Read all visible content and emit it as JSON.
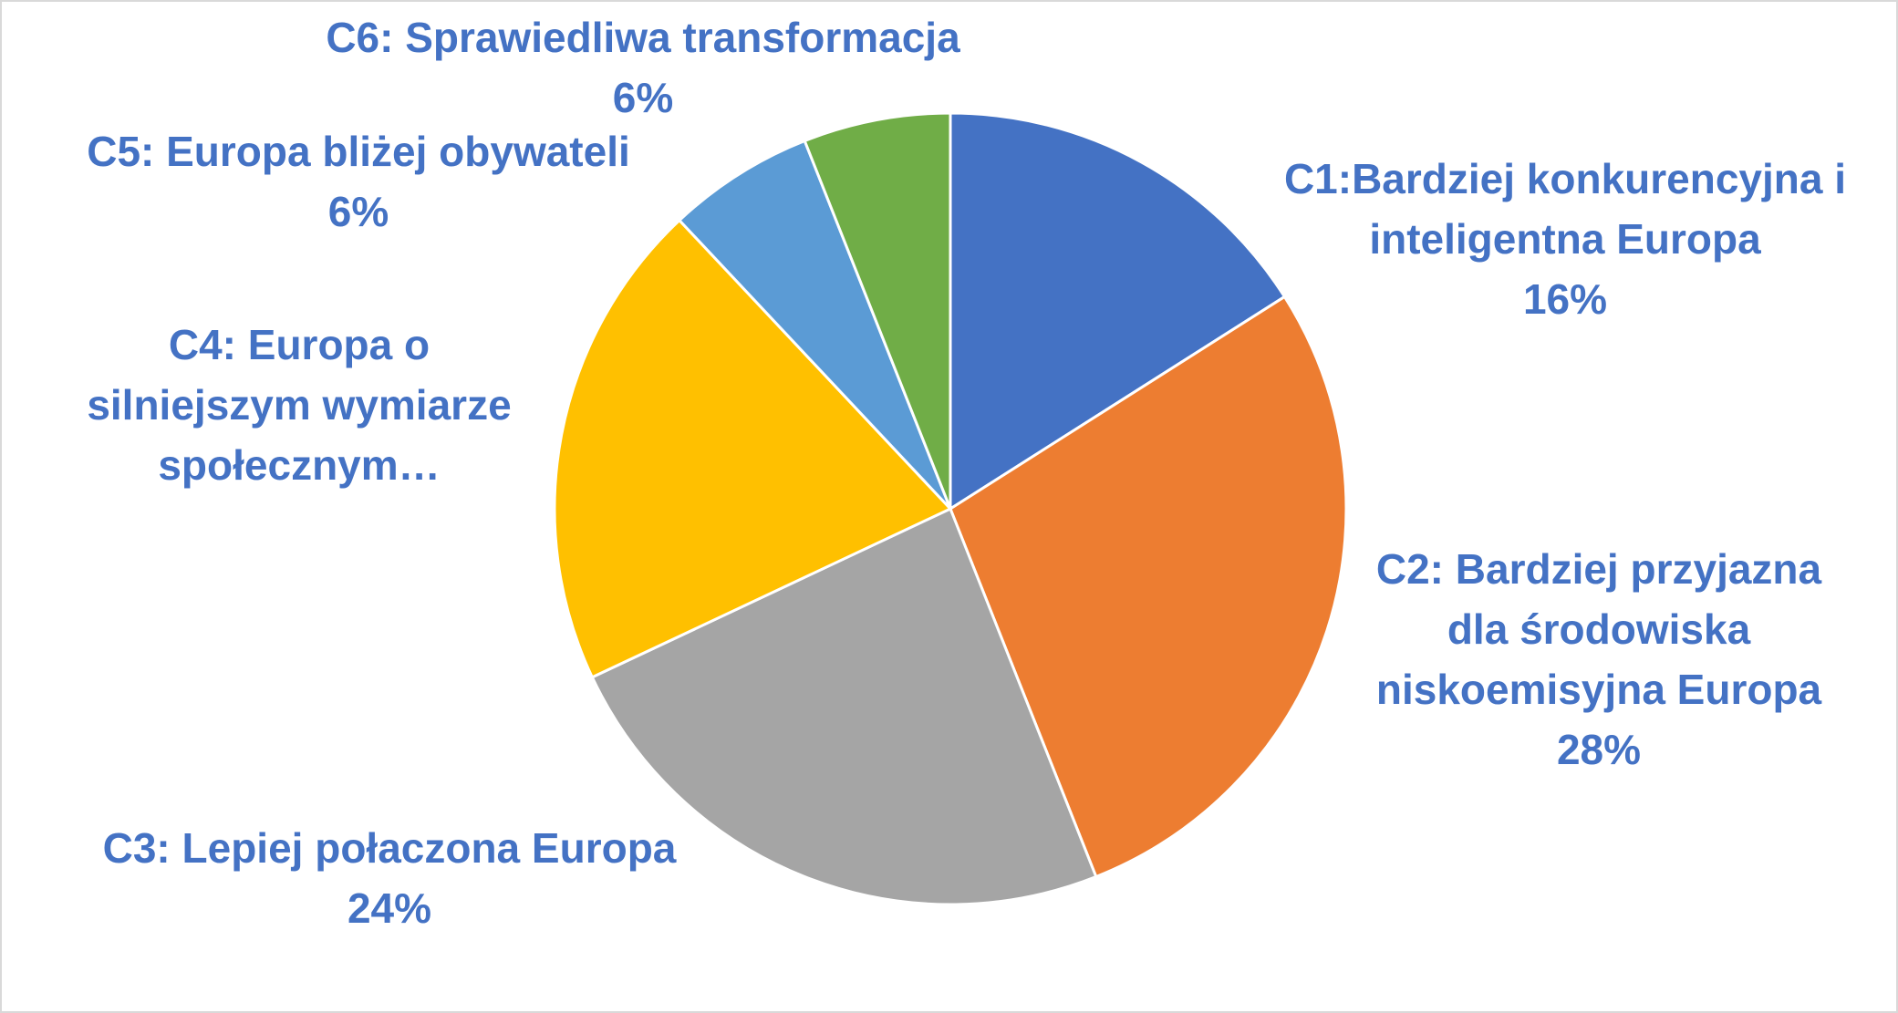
{
  "chart_data": {
    "type": "pie",
    "start_angle_deg": 0,
    "direction": "clockwise",
    "label_color": "#4472C4",
    "slices": [
      {
        "name": "C1:Bardziej konkurencyjna i inteligentna Europa",
        "label_lines": [
          "C1:Bardziej konkurencyjna i",
          "inteligentna Europa"
        ],
        "value": 16,
        "percent_label": "16%",
        "color": "#4472C4"
      },
      {
        "name": "C2: Bardziej przyjazna dla środowiska niskoemisyjna Europa",
        "label_lines": [
          "C2: Bardziej przyjazna",
          "dla środowiska",
          "niskoemisyjna Europa"
        ],
        "value": 28,
        "percent_label": "28%",
        "color": "#ED7D31"
      },
      {
        "name": "C3: Lepiej połaczona Europa",
        "label_lines": [
          "C3: Lepiej połaczona Europa"
        ],
        "value": 24,
        "percent_label": "24%",
        "color": "#A5A5A5"
      },
      {
        "name": "C4: Europa o silniejszym wymiarze społecznym…",
        "label_lines": [
          "C4: Europa o",
          "silniejszym wymiarze",
          "społecznym…"
        ],
        "value": 20,
        "percent_label": "",
        "color": "#FFC000"
      },
      {
        "name": "C5: Europa bliżej obywateli",
        "label_lines": [
          "C5: Europa bliżej obywateli"
        ],
        "value": 6,
        "percent_label": "6%",
        "color": "#5B9BD5"
      },
      {
        "name": "C6: Sprawiedliwa transformacja",
        "label_lines": [
          "C6: Sprawiedliwa transformacja"
        ],
        "value": 6,
        "percent_label": "6%",
        "color": "#70AD47"
      }
    ]
  }
}
